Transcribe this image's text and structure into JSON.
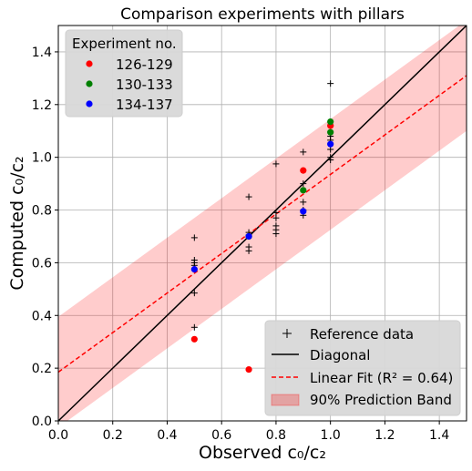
{
  "chart_data": {
    "type": "scatter",
    "title": "Comparison experiments with pillars",
    "xlabel": "Observed c₀/c₂",
    "ylabel": "Computed c₀/c₂",
    "xlim": [
      0.0,
      1.5
    ],
    "ylim": [
      0.0,
      1.5
    ],
    "xticks": [
      0.0,
      0.2,
      0.4,
      0.6,
      0.8,
      1.0,
      1.2,
      1.4
    ],
    "yticks": [
      0.0,
      0.2,
      0.4,
      0.6,
      0.8,
      1.0,
      1.2,
      1.4
    ],
    "xtick_labels": [
      "0.0",
      "0.2",
      "0.4",
      "0.6",
      "0.8",
      "1.0",
      "1.2",
      "1.4"
    ],
    "ytick_labels": [
      "0.0",
      "0.2",
      "0.4",
      "0.6",
      "0.8",
      "1.0",
      "1.2",
      "1.4"
    ],
    "grid": true,
    "reference": {
      "name": "Reference data",
      "color": "#000000",
      "marker": "plus",
      "points": [
        [
          0.5,
          0.695
        ],
        [
          0.5,
          0.61
        ],
        [
          0.5,
          0.6
        ],
        [
          0.5,
          0.59
        ],
        [
          0.5,
          0.485
        ],
        [
          0.5,
          0.355
        ],
        [
          0.7,
          0.85
        ],
        [
          0.7,
          0.715
        ],
        [
          0.7,
          0.705
        ],
        [
          0.7,
          0.66
        ],
        [
          0.7,
          0.645
        ],
        [
          0.8,
          0.975
        ],
        [
          0.8,
          0.79
        ],
        [
          0.8,
          0.77
        ],
        [
          0.8,
          0.74
        ],
        [
          0.8,
          0.725
        ],
        [
          0.8,
          0.71
        ],
        [
          0.9,
          1.02
        ],
        [
          0.9,
          0.9
        ],
        [
          0.9,
          0.83
        ],
        [
          0.9,
          0.8
        ],
        [
          0.9,
          0.78
        ],
        [
          1.0,
          1.28
        ],
        [
          1.0,
          1.12
        ],
        [
          1.0,
          1.08
        ],
        [
          1.0,
          1.065
        ],
        [
          1.0,
          1.03
        ],
        [
          1.0,
          1.0
        ],
        [
          1.0,
          0.99
        ]
      ]
    },
    "series": [
      {
        "name": "126-129",
        "color": "#ff0000",
        "points": [
          [
            0.5,
            0.31
          ],
          [
            0.7,
            0.195
          ],
          [
            0.9,
            0.95
          ],
          [
            1.0,
            1.12
          ]
        ]
      },
      {
        "name": "130-133",
        "color": "#008000",
        "points": [
          [
            0.7,
            0.7
          ],
          [
            0.9,
            0.875
          ],
          [
            1.0,
            1.135
          ],
          [
            1.0,
            1.095
          ]
        ]
      },
      {
        "name": "134-137",
        "color": "#0000ff",
        "points": [
          [
            0.5,
            0.575
          ],
          [
            0.7,
            0.7
          ],
          [
            0.9,
            0.795
          ],
          [
            1.0,
            1.05
          ]
        ]
      }
    ],
    "diagonal": {
      "name": "Diagonal",
      "color": "#000000"
    },
    "fit": {
      "label_prefix": "Linear Fit (",
      "label_r2": "R² = 0.64",
      "label_suffix": ")",
      "color": "#ff0000",
      "slope": 0.75,
      "intercept": 0.185
    },
    "band": {
      "name": "90% Prediction Band",
      "color": "#ff0000",
      "half_width": 0.21
    },
    "legend_series_title": "Experiment no.",
    "legend_series_placement": "top-left",
    "legend_lines_placement": "bottom-right"
  }
}
